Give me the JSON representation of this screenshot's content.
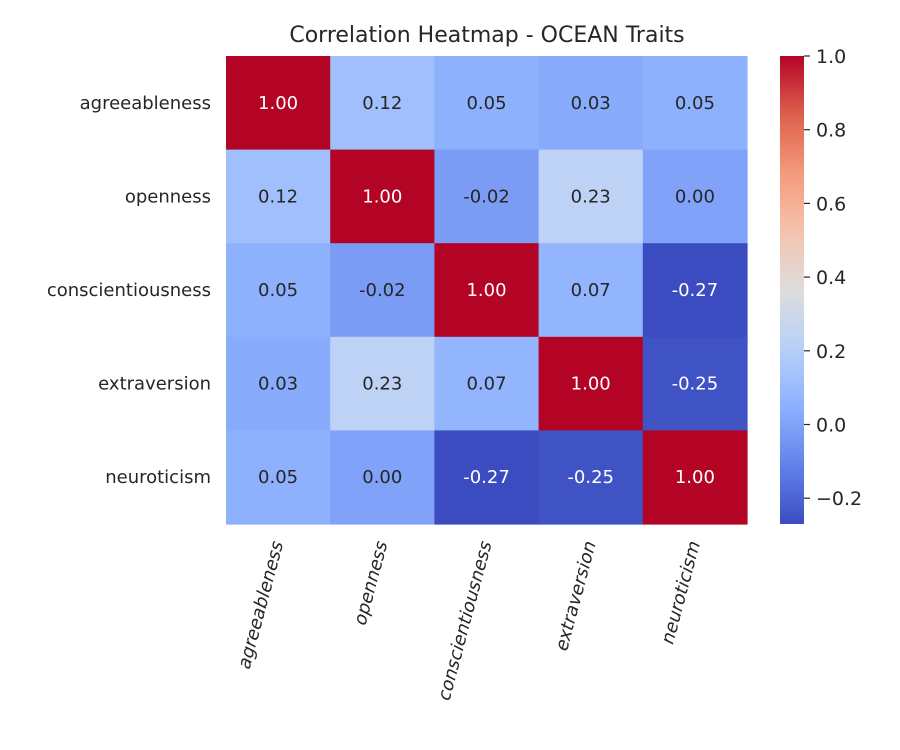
{
  "chart_data": {
    "type": "heatmap",
    "title": "Correlation Heatmap - OCEAN Traits",
    "rows": [
      "agreeableness",
      "openness",
      "conscientiousness",
      "extraversion",
      "neuroticism"
    ],
    "columns": [
      "agreeableness",
      "openness",
      "conscientiousness",
      "extraversion",
      "neuroticism"
    ],
    "values": [
      [
        1.0,
        0.12,
        0.05,
        0.03,
        0.05
      ],
      [
        0.12,
        1.0,
        -0.02,
        0.23,
        0.0
      ],
      [
        0.05,
        -0.02,
        1.0,
        0.07,
        -0.27
      ],
      [
        0.03,
        0.23,
        0.07,
        1.0,
        -0.25
      ],
      [
        0.05,
        0.0,
        -0.27,
        -0.25,
        1.0
      ]
    ],
    "cell_labels": [
      [
        "1.00",
        "0.12",
        "0.05",
        "0.03",
        "0.05"
      ],
      [
        "0.12",
        "1.00",
        "-0.02",
        "0.23",
        "0.00"
      ],
      [
        "0.05",
        "-0.02",
        "1.00",
        "0.07",
        "-0.27"
      ],
      [
        "0.03",
        "0.23",
        "0.07",
        "1.00",
        "-0.25"
      ],
      [
        "0.05",
        "0.00",
        "-0.27",
        "-0.25",
        "1.00"
      ]
    ],
    "colormap": "coolwarm",
    "vmin": -0.27,
    "vmax": 1.0,
    "colorbar": {
      "ticks": [
        1.0,
        0.8,
        0.6,
        0.4,
        0.2,
        0.0,
        -0.2
      ],
      "tick_labels": [
        "1.0",
        "0.8",
        "0.6",
        "0.4",
        "0.2",
        "0.0",
        "−0.2"
      ]
    },
    "xtick_rotation": 75,
    "grid": false
  }
}
